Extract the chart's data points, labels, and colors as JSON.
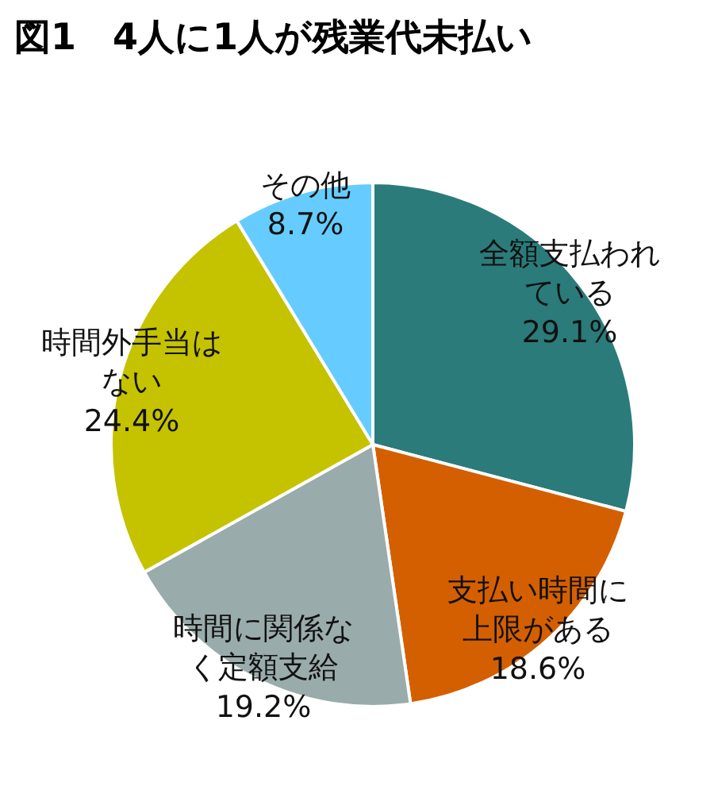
{
  "chart_data": {
    "type": "pie",
    "title": "図1　4人に1人が残業代未払い",
    "categories": [
      "全額支払われている",
      "支払い時間に上限がある",
      "時間に関係なく定額支給",
      "時間外手当はない",
      "その他"
    ],
    "values": [
      29.1,
      18.6,
      19.2,
      24.4,
      8.7
    ],
    "value_labels": [
      "29.1%",
      "18.6%",
      "19.2%",
      "24.4%",
      "8.7%"
    ],
    "colors": [
      "#2b7b7b",
      "#d45f00",
      "#9aabab",
      "#c5c200",
      "#66ccff"
    ]
  }
}
